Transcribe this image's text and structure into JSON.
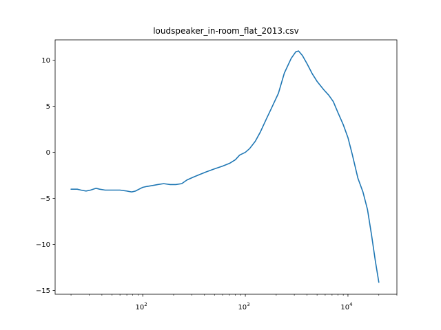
{
  "chart_data": {
    "type": "line",
    "title": "loudspeaker_in-room_flat_2013.csv",
    "xlabel": "",
    "ylabel": "",
    "xscale": "log",
    "xlim": [
      14,
      30000
    ],
    "ylim": [
      -15.4,
      12.2
    ],
    "grid": false,
    "x_ticks": [
      {
        "value": 100,
        "base": "10",
        "exp": "2"
      },
      {
        "value": 1000,
        "base": "10",
        "exp": "3"
      },
      {
        "value": 10000,
        "base": "10",
        "exp": "4"
      }
    ],
    "y_ticks": [
      {
        "value": 10,
        "label": "10"
      },
      {
        "value": 5,
        "label": "5"
      },
      {
        "value": 0,
        "label": "0"
      },
      {
        "value": -5,
        "label": "−5"
      },
      {
        "value": -10,
        "label": "−10"
      },
      {
        "value": -15,
        "label": "−15"
      }
    ],
    "series": [
      {
        "color": "#1f77b4",
        "points": [
          [
            20,
            -4.0
          ],
          [
            23,
            -4.0
          ],
          [
            25,
            -4.1
          ],
          [
            28,
            -4.2
          ],
          [
            31,
            -4.1
          ],
          [
            35,
            -3.9
          ],
          [
            38,
            -4.0
          ],
          [
            43,
            -4.1
          ],
          [
            50,
            -4.1
          ],
          [
            60,
            -4.1
          ],
          [
            70,
            -4.2
          ],
          [
            78,
            -4.3
          ],
          [
            85,
            -4.2
          ],
          [
            92,
            -4.0
          ],
          [
            100,
            -3.8
          ],
          [
            110,
            -3.7
          ],
          [
            125,
            -3.6
          ],
          [
            140,
            -3.5
          ],
          [
            160,
            -3.4
          ],
          [
            185,
            -3.5
          ],
          [
            210,
            -3.5
          ],
          [
            240,
            -3.4
          ],
          [
            270,
            -3.0
          ],
          [
            310,
            -2.7
          ],
          [
            360,
            -2.4
          ],
          [
            420,
            -2.1
          ],
          [
            500,
            -1.8
          ],
          [
            600,
            -1.5
          ],
          [
            700,
            -1.2
          ],
          [
            800,
            -0.8
          ],
          [
            880,
            -0.3
          ],
          [
            1000,
            0.0
          ],
          [
            1100,
            0.4
          ],
          [
            1250,
            1.2
          ],
          [
            1400,
            2.2
          ],
          [
            1600,
            3.6
          ],
          [
            1800,
            4.8
          ],
          [
            2100,
            6.4
          ],
          [
            2400,
            8.6
          ],
          [
            2800,
            10.2
          ],
          [
            3100,
            10.9
          ],
          [
            3300,
            11.0
          ],
          [
            3600,
            10.5
          ],
          [
            4000,
            9.6
          ],
          [
            4500,
            8.5
          ],
          [
            5000,
            7.7
          ],
          [
            5800,
            6.8
          ],
          [
            6500,
            6.2
          ],
          [
            7200,
            5.5
          ],
          [
            8000,
            4.3
          ],
          [
            9000,
            3.0
          ],
          [
            10000,
            1.6
          ],
          [
            11000,
            -0.2
          ],
          [
            12500,
            -2.8
          ],
          [
            14000,
            -4.3
          ],
          [
            15500,
            -6.2
          ],
          [
            17000,
            -9.0
          ],
          [
            18500,
            -11.8
          ],
          [
            20000,
            -14.1
          ]
        ]
      }
    ]
  }
}
